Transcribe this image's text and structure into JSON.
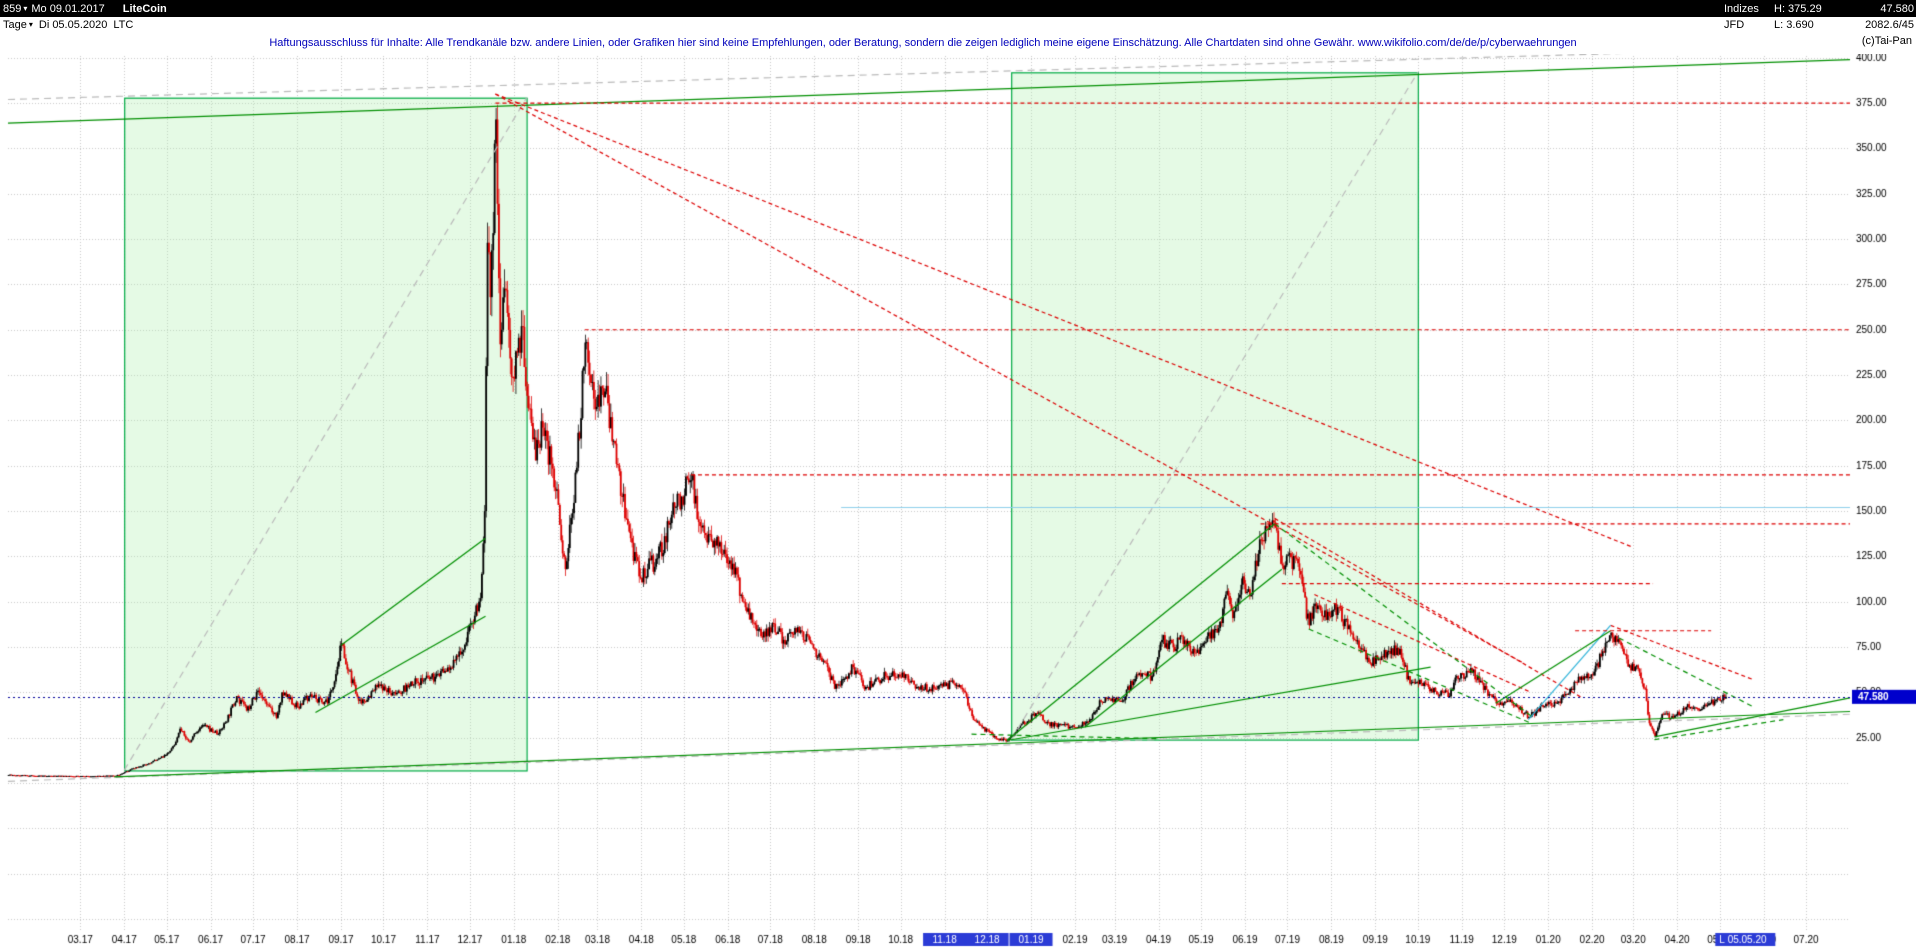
{
  "header": {
    "bar_count": "859",
    "caret": "▾",
    "start_date": "Mo 09.01.2017",
    "instrument": "LiteCoin",
    "feed": "Indizes",
    "high": "H: 375.29",
    "last": "47.580",
    "broker": "JFD",
    "low": "L: 3.690",
    "extra": "2082.6/45",
    "copyright": "(c)Tai-Pan"
  },
  "toolbar": {
    "timeframe": "Tage",
    "caret": "▾",
    "cursor_date": "Di 05.05.2020",
    "symbol": "LTC"
  },
  "disclaimer": "Haftungsausschluss für Inhalte: Alle Trendkanäle bzw. andere Linien, oder Grafiken hier sind keine Empfehlungen, oder Beratung, sondern die zeigen lediglich meine eigene Einschätzung. Alle Chartdaten sind ohne Gewähr.  www.wikifolio.com/de/de/p/cyberwaehrungen",
  "chart_data": {
    "type": "candlestick",
    "instrument": "LiteCoin",
    "symbol": "LTC",
    "date_start": "2017-01-09",
    "date_end": "2020-08-01",
    "last_bar_date": "2020-05-05",
    "last_price": 47.58,
    "last_price_label": "47.580",
    "cursor_label": "L 05.05.20",
    "high_all": 375.29,
    "low_all": 3.69,
    "ylim": [
      -81,
      401
    ],
    "grid_step": 25,
    "grid_min": -75,
    "y_ticks": [
      {
        "v": 400,
        "label": "400.00"
      },
      {
        "v": 375,
        "label": "375.00"
      },
      {
        "v": 350,
        "label": "350.00"
      },
      {
        "v": 325,
        "label": "325.00"
      },
      {
        "v": 300,
        "label": "300.00"
      },
      {
        "v": 275,
        "label": "275.00"
      },
      {
        "v": 250,
        "label": "250.00"
      },
      {
        "v": 225,
        "label": "225.00"
      },
      {
        "v": 200,
        "label": "200.00"
      },
      {
        "v": 175,
        "label": "175.00"
      },
      {
        "v": 150,
        "label": "150.00"
      },
      {
        "v": 125,
        "label": "125.00"
      },
      {
        "v": 100,
        "label": "100.00"
      },
      {
        "v": 75,
        "label": "75.00"
      },
      {
        "v": 50,
        "label": "50.00"
      },
      {
        "v": 25,
        "label": "25.00"
      }
    ],
    "x_ticks": [
      {
        "l": "03.17",
        "d": "2017-03-01"
      },
      {
        "l": "04.17",
        "d": "2017-04-01"
      },
      {
        "l": "05.17",
        "d": "2017-05-01"
      },
      {
        "l": "06.17",
        "d": "2017-06-01"
      },
      {
        "l": "07.17",
        "d": "2017-07-01"
      },
      {
        "l": "08.17",
        "d": "2017-08-01"
      },
      {
        "l": "09.17",
        "d": "2017-09-01"
      },
      {
        "l": "10.17",
        "d": "2017-10-01"
      },
      {
        "l": "11.17",
        "d": "2017-11-01"
      },
      {
        "l": "12.17",
        "d": "2017-12-01"
      },
      {
        "l": "01.18",
        "d": "2018-01-01"
      },
      {
        "l": "02.18",
        "d": "2018-02-01"
      },
      {
        "l": "03.18",
        "d": "2018-03-01"
      },
      {
        "l": "04.18",
        "d": "2018-04-01"
      },
      {
        "l": "05.18",
        "d": "2018-05-01"
      },
      {
        "l": "06.18",
        "d": "2018-06-01"
      },
      {
        "l": "07.18",
        "d": "2018-07-01"
      },
      {
        "l": "08.18",
        "d": "2018-08-01"
      },
      {
        "l": "09.18",
        "d": "2018-09-01"
      },
      {
        "l": "10.18",
        "d": "2018-10-01"
      },
      {
        "l": "11.18",
        "d": "2018-11-01",
        "h": true
      },
      {
        "l": "12.18",
        "d": "2018-12-01",
        "h": true
      },
      {
        "l": "01.19",
        "d": "2019-01-01",
        "h": true
      },
      {
        "l": "02.19",
        "d": "2019-02-01"
      },
      {
        "l": "03.19",
        "d": "2019-03-01"
      },
      {
        "l": "04.19",
        "d": "2019-04-01"
      },
      {
        "l": "05.19",
        "d": "2019-05-01"
      },
      {
        "l": "06.19",
        "d": "2019-06-01"
      },
      {
        "l": "07.19",
        "d": "2019-07-01"
      },
      {
        "l": "08.19",
        "d": "2019-08-01"
      },
      {
        "l": "09.19",
        "d": "2019-09-01"
      },
      {
        "l": "10.19",
        "d": "2019-10-01"
      },
      {
        "l": "11.19",
        "d": "2019-11-01"
      },
      {
        "l": "12.19",
        "d": "2019-12-01"
      },
      {
        "l": "01.20",
        "d": "2020-01-01"
      },
      {
        "l": "02.20",
        "d": "2020-02-01"
      },
      {
        "l": "03.20",
        "d": "2020-03-01"
      },
      {
        "l": "04.20",
        "d": "2020-04-01"
      },
      {
        "l": "05.20",
        "d": "2020-05-01"
      },
      {
        "l": "06.20",
        "d": "2020-06-01"
      },
      {
        "l": "07.20",
        "d": "2020-07-01"
      }
    ],
    "colors": {
      "up": "#000000",
      "down": "#dd0000",
      "grid": "#c8c8c8",
      "box_fill": "rgba(180,240,180,0.35)",
      "box_stroke": "#00aa44",
      "green": "#008f00",
      "red": "#dd0000",
      "gray": "#bbbbbb",
      "cyan": "#8ecfeb",
      "cyan2": "#2fb4da",
      "navy": "#000099",
      "highlight_bg": "#2b3bd6",
      "price_label_bg": "#0000cc",
      "axis_text": "#000000"
    },
    "price_path": [
      [
        "2017-01-09",
        4.5
      ],
      [
        "2017-02-05",
        3.9
      ],
      [
        "2017-03-10",
        3.8
      ],
      [
        "2017-03-26",
        4.1
      ],
      [
        "2017-04-06",
        8
      ],
      [
        "2017-04-20",
        11.5
      ],
      [
        "2017-04-30",
        15.5
      ],
      [
        "2017-05-06",
        21
      ],
      [
        "2017-05-10",
        30
      ],
      [
        "2017-05-16",
        23
      ],
      [
        "2017-05-26",
        32
      ],
      [
        "2017-06-06",
        27
      ],
      [
        "2017-06-19",
        48
      ],
      [
        "2017-06-26",
        40
      ],
      [
        "2017-07-04",
        51
      ],
      [
        "2017-07-11",
        43
      ],
      [
        "2017-07-17",
        36
      ],
      [
        "2017-07-21",
        50
      ],
      [
        "2017-08-01",
        42
      ],
      [
        "2017-08-09",
        48
      ],
      [
        "2017-08-22",
        44
      ],
      [
        "2017-09-01",
        77
      ],
      [
        "2017-09-06",
        62
      ],
      [
        "2017-09-15",
        44
      ],
      [
        "2017-09-26",
        53
      ],
      [
        "2017-10-09",
        49
      ],
      [
        "2017-10-24",
        56
      ],
      [
        "2017-11-09",
        59
      ],
      [
        "2017-11-24",
        71
      ],
      [
        "2017-12-01",
        88
      ],
      [
        "2017-12-08",
        102
      ],
      [
        "2017-12-11",
        150
      ],
      [
        "2017-12-12",
        230
      ],
      [
        "2017-12-13",
        298
      ],
      [
        "2017-12-15",
        268
      ],
      [
        "2017-12-19",
        366
      ],
      [
        "2017-12-22",
        242
      ],
      [
        "2017-12-26",
        272
      ],
      [
        "2017-12-30",
        224
      ],
      [
        "2018-01-06",
        252
      ],
      [
        "2018-01-16",
        178
      ],
      [
        "2018-01-21",
        196
      ],
      [
        "2018-01-31",
        162
      ],
      [
        "2018-02-06",
        118
      ],
      [
        "2018-02-20",
        243
      ],
      [
        "2018-02-26",
        212
      ],
      [
        "2018-03-06",
        216
      ],
      [
        "2018-03-18",
        158
      ],
      [
        "2018-03-30",
        114
      ],
      [
        "2018-04-12",
        124
      ],
      [
        "2018-04-24",
        152
      ],
      [
        "2018-05-06",
        167
      ],
      [
        "2018-05-13",
        141
      ],
      [
        "2018-05-23",
        131
      ],
      [
        "2018-06-04",
        121
      ],
      [
        "2018-06-13",
        97
      ],
      [
        "2018-06-24",
        81
      ],
      [
        "2018-07-03",
        88
      ],
      [
        "2018-07-10",
        79
      ],
      [
        "2018-07-20",
        86
      ],
      [
        "2018-08-01",
        74
      ],
      [
        "2018-08-11",
        61
      ],
      [
        "2018-08-15",
        52
      ],
      [
        "2018-08-28",
        64
      ],
      [
        "2018-09-06",
        53
      ],
      [
        "2018-09-20",
        59
      ],
      [
        "2018-10-02",
        61
      ],
      [
        "2018-10-12",
        53
      ],
      [
        "2018-10-26",
        52
      ],
      [
        "2018-11-07",
        55
      ],
      [
        "2018-11-14",
        51
      ],
      [
        "2018-11-20",
        37
      ],
      [
        "2018-11-26",
        32
      ],
      [
        "2018-12-07",
        24.5
      ],
      [
        "2018-12-15",
        23.5
      ],
      [
        "2018-12-24",
        32
      ],
      [
        "2019-01-06",
        39
      ],
      [
        "2019-01-11",
        33
      ],
      [
        "2019-01-28",
        31
      ],
      [
        "2019-02-08",
        33
      ],
      [
        "2019-02-19",
        45
      ],
      [
        "2019-02-24",
        47
      ],
      [
        "2019-03-05",
        45
      ],
      [
        "2019-03-16",
        60
      ],
      [
        "2019-03-27",
        59
      ],
      [
        "2019-04-03",
        79
      ],
      [
        "2019-04-11",
        75
      ],
      [
        "2019-04-17",
        81
      ],
      [
        "2019-04-26",
        72
      ],
      [
        "2019-05-04",
        78
      ],
      [
        "2019-05-14",
        89
      ],
      [
        "2019-05-19",
        106
      ],
      [
        "2019-05-23",
        91
      ],
      [
        "2019-05-30",
        114
      ],
      [
        "2019-06-04",
        103
      ],
      [
        "2019-06-12",
        134
      ],
      [
        "2019-06-22",
        141
      ],
      [
        "2019-06-27",
        120
      ],
      [
        "2019-07-01",
        126
      ],
      [
        "2019-07-09",
        117
      ],
      [
        "2019-07-16",
        87
      ],
      [
        "2019-07-20",
        99
      ],
      [
        "2019-07-28",
        90
      ],
      [
        "2019-08-05",
        97
      ],
      [
        "2019-08-14",
        83
      ],
      [
        "2019-08-21",
        74
      ],
      [
        "2019-08-28",
        66
      ],
      [
        "2019-09-05",
        70
      ],
      [
        "2019-09-18",
        74
      ],
      [
        "2019-09-25",
        55
      ],
      [
        "2019-10-02",
        57
      ],
      [
        "2019-10-10",
        52
      ],
      [
        "2019-10-23",
        48
      ],
      [
        "2019-10-28",
        59
      ],
      [
        "2019-11-08",
        61
      ],
      [
        "2019-11-20",
        49
      ],
      [
        "2019-11-25",
        44
      ],
      [
        "2019-12-05",
        46
      ],
      [
        "2019-12-18",
        36.5
      ],
      [
        "2019-12-28",
        42
      ],
      [
        "2020-01-08",
        45
      ],
      [
        "2020-01-16",
        52
      ],
      [
        "2020-01-23",
        57
      ],
      [
        "2020-01-31",
        60
      ],
      [
        "2020-02-07",
        70
      ],
      [
        "2020-02-14",
        83
      ],
      [
        "2020-02-21",
        76
      ],
      [
        "2020-02-27",
        65
      ],
      [
        "2020-03-05",
        61
      ],
      [
        "2020-03-09",
        52
      ],
      [
        "2020-03-12",
        33
      ],
      [
        "2020-03-16",
        26
      ],
      [
        "2020-03-21",
        38
      ],
      [
        "2020-03-29",
        36
      ],
      [
        "2020-04-07",
        42
      ],
      [
        "2020-04-16",
        40
      ],
      [
        "2020-04-23",
        44
      ],
      [
        "2020-04-30",
        46.5
      ],
      [
        "2020-05-05",
        47.58
      ]
    ],
    "boxes": [
      {
        "x1": "2017-04-01",
        "x2": "2018-01-10",
        "p1": 7,
        "p2": 378
      },
      {
        "x1": "2018-12-18",
        "x2": "2019-10-01",
        "p1": 24,
        "p2": 392
      }
    ],
    "hlines": [
      {
        "p": 375,
        "from": "2017-12-19",
        "to": "2020-08-01",
        "color": "red",
        "dash": [
          4,
          3
        ]
      },
      {
        "p": 250,
        "from": "2018-02-20",
        "to": "2020-08-01",
        "color": "red",
        "dash": [
          4,
          3
        ]
      },
      {
        "p": 170,
        "from": "2018-05-06",
        "to": "2020-08-01",
        "color": "red",
        "dash": [
          4,
          3
        ]
      },
      {
        "p": 152,
        "from": "2018-08-20",
        "to": "2020-08-01",
        "color": "cyan",
        "dash": null
      },
      {
        "p": 143,
        "from": "2019-06-12",
        "to": "2020-08-01",
        "color": "red",
        "dash": [
          4,
          3
        ]
      },
      {
        "p": 110,
        "from": "2019-06-27",
        "to": "2020-03-15",
        "color": "red",
        "dash": [
          4,
          3
        ]
      },
      {
        "p": 84,
        "from": "2020-01-20",
        "to": "2020-04-25",
        "color": "red",
        "dash": [
          4,
          3
        ]
      }
    ],
    "lines": [
      {
        "x1": "2017-01-09",
        "p1": 364,
        "x2": "2020-08-01",
        "p2": 399,
        "c": "green"
      },
      {
        "x1": "2017-01-09",
        "p1": 377,
        "x2": "2020-08-01",
        "p2": 406,
        "c": "gray",
        "d": [
          7,
          5
        ]
      },
      {
        "x1": "2017-04-01",
        "p1": 7,
        "x2": "2018-01-10",
        "p2": 378,
        "c": "gray",
        "d": [
          7,
          5
        ]
      },
      {
        "x1": "2018-12-18",
        "p1": 24,
        "x2": "2019-10-01",
        "p2": 392,
        "c": "gray",
        "d": [
          7,
          5
        ]
      },
      {
        "x1": "2017-01-09",
        "p1": 1,
        "x2": "2020-08-01",
        "p2": 38,
        "c": "gray",
        "d": [
          7,
          5
        ]
      },
      {
        "x1": "2017-03-25",
        "p1": 3.5,
        "x2": "2020-08-01",
        "p2": 39.5,
        "c": "green"
      },
      {
        "x1": "2017-08-14",
        "p1": 39,
        "x2": "2017-12-12",
        "p2": 92,
        "c": "green"
      },
      {
        "x1": "2017-09-01",
        "p1": 76,
        "x2": "2017-12-12",
        "p2": 135,
        "c": "green"
      },
      {
        "x1": "2017-12-19",
        "p1": 380,
        "x2": "2019-12-15",
        "p2": 66,
        "c": "red",
        "d": [
          4,
          3
        ]
      },
      {
        "x1": "2017-12-19",
        "p1": 380,
        "x2": "2020-03-01",
        "p2": 130,
        "c": "red",
        "d": [
          4,
          3
        ]
      },
      {
        "x1": "2019-06-22",
        "p1": 146,
        "x2": "2020-01-25",
        "p2": 47,
        "c": "red",
        "d": [
          4,
          3
        ]
      },
      {
        "x1": "2019-07-20",
        "p1": 104,
        "x2": "2019-12-20",
        "p2": 50,
        "c": "red",
        "d": [
          4,
          3
        ]
      },
      {
        "x1": "2020-02-14",
        "p1": 87,
        "x2": "2020-05-25",
        "p2": 57,
        "c": "red",
        "d": [
          4,
          3
        ]
      },
      {
        "x1": "2019-12-18",
        "p1": 35,
        "x2": "2020-02-14",
        "p2": 87,
        "c": "cyan2"
      },
      {
        "x1": "2018-12-15",
        "p1": 23.5,
        "x2": "2019-06-22",
        "p2": 143,
        "c": "green"
      },
      {
        "x1": "2019-02-08",
        "p1": 31,
        "x2": "2019-06-27",
        "p2": 118,
        "c": "green"
      },
      {
        "x1": "2018-12-15",
        "p1": 23.5,
        "x2": "2019-10-10",
        "p2": 64,
        "c": "green"
      },
      {
        "x1": "2019-06-22",
        "p1": 143,
        "x2": "2019-12-20",
        "p2": 37,
        "c": "green",
        "d": [
          5,
          4
        ]
      },
      {
        "x1": "2019-07-16",
        "p1": 85,
        "x2": "2019-12-20",
        "p2": 33,
        "c": "green",
        "d": [
          5,
          4
        ]
      },
      {
        "x1": "2019-11-25",
        "p1": 44,
        "x2": "2020-02-14",
        "p2": 84,
        "c": "green"
      },
      {
        "x1": "2020-03-16",
        "p1": 25.5,
        "x2": "2020-08-01",
        "p2": 47,
        "c": "green"
      },
      {
        "x1": "2020-03-16",
        "p1": 24,
        "x2": "2020-06-15",
        "p2": 35,
        "c": "green",
        "d": [
          5,
          4
        ]
      },
      {
        "x1": "2018-11-20",
        "p1": 27,
        "x2": "2019-04-01",
        "p2": 24.5,
        "c": "green",
        "d": [
          5,
          4
        ]
      },
      {
        "x1": "2020-02-20",
        "p1": 80,
        "x2": "2020-05-25",
        "p2": 42,
        "c": "green",
        "d": [
          5,
          4
        ]
      }
    ]
  }
}
